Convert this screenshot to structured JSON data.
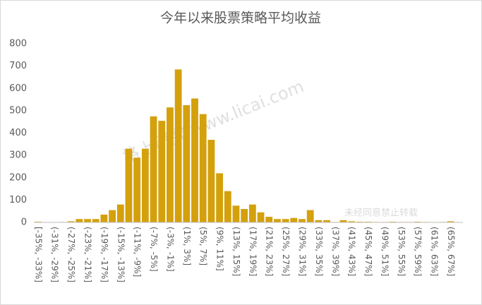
{
  "chart_data": {
    "type": "bar",
    "title": "今年以来股票策略平均收益",
    "categories": [
      "[-35%, -33%]",
      null,
      "(-31%, -29%]",
      null,
      "(-27%, -25%]",
      null,
      "(-23%, -21%]",
      null,
      "(-19%, -17%]",
      null,
      "(-15%, -13%]",
      null,
      "(-11%, -9%]",
      null,
      "(-7%, -5%]",
      null,
      "(-3%, -1%]",
      null,
      "(1%, 3%]",
      null,
      "(5%, 7%]",
      null,
      "(9%, 11%]",
      null,
      "(13%, 15%]",
      null,
      "(17%, 19%]",
      null,
      "(21%, 23%]",
      null,
      "(25%, 27%]",
      null,
      "(29%, 31%]",
      null,
      "(33%, 35%]",
      null,
      "(37%, 39%]",
      null,
      "(41%, 43%]",
      null,
      "(45%, 47%]",
      null,
      "(49%, 51%]",
      null,
      "(53%, 55%]",
      null,
      "(57%, 59%]",
      null,
      "(61%, 63%]",
      null,
      "(65%, 67%]",
      null
    ],
    "values": [
      3,
      0,
      0,
      2,
      5,
      15,
      15,
      15,
      35,
      55,
      80,
      330,
      290,
      330,
      475,
      455,
      515,
      685,
      525,
      555,
      485,
      370,
      220,
      140,
      75,
      60,
      80,
      45,
      25,
      15,
      15,
      20,
      15,
      55,
      10,
      10,
      2,
      10,
      5,
      3,
      3,
      2,
      2,
      3,
      2,
      2,
      3,
      2,
      1,
      2,
      5,
      1
    ],
    "color": "#d4a00c",
    "ylim": [
      0,
      800
    ],
    "yticks": [
      0,
      100,
      200,
      300,
      400,
      500,
      600,
      700,
      800
    ],
    "grid": false,
    "watermarks": [
      "格上研究 www.licai.com",
      "未经同意禁止转载"
    ]
  }
}
